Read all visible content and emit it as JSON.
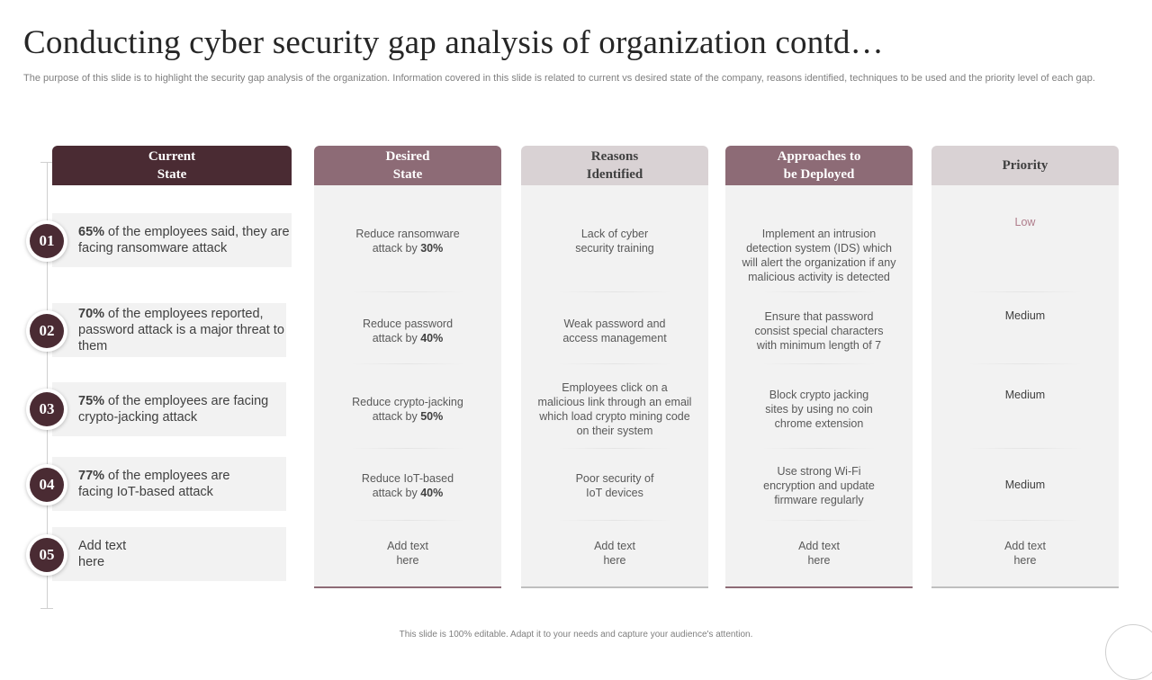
{
  "title": "Conducting cyber security gap analysis of organization contd…",
  "subtitle": "The purpose of this slide is to highlight the security gap analysis of the organization. Information covered in this slide is related to current vs  desired state of the company, reasons identified, techniques to be used and the priority level of each gap.",
  "headers": {
    "current": "Current\nState",
    "desired": "Desired\nState",
    "reasons": "Reasons\nIdentified",
    "approaches": "Approaches to\nbe Deployed",
    "priority": "Priority"
  },
  "rows": [
    {
      "num": "01",
      "current_bold": "65%",
      "current_text": " of the employees said, they are facing ransomware attack",
      "desired_text": "Reduce ransomware attack by ",
      "desired_bold": "30%",
      "reason": "Lack of cyber security training",
      "approach": "Implement  an intrusion detection system (IDS) which will alert the organization if any malicious  activity is detected",
      "priority": "Low"
    },
    {
      "num": "02",
      "current_bold": "70%",
      "current_text": " of the employees reported, password attack is a major threat to them",
      "desired_text": "Reduce password attack  by ",
      "desired_bold": "40%",
      "reason": "Weak password and access management",
      "approach": "Ensure that password consist special characters with minimum length of 7",
      "priority": "Medium"
    },
    {
      "num": "03",
      "current_bold": "75%",
      "current_text": " of the employees are facing crypto-jacking attack",
      "desired_text": "Reduce crypto-jacking attack by ",
      "desired_bold": "50%",
      "reason": "Employees click on a malicious link through an email which load crypto mining code on their system",
      "approach": "Block crypto jacking sites by using no coin chrome extension",
      "priority": "Medium"
    },
    {
      "num": "04",
      "current_bold": "77%",
      "current_text": " of the employees are facing IoT-based attack",
      "desired_text": "Reduce IoT-based attack by ",
      "desired_bold": "40%",
      "reason": "Poor security of IoT devices",
      "approach": "Use strong Wi-Fi encryption and update firmware regularly",
      "priority": "Medium"
    },
    {
      "num": "05",
      "current_bold": "",
      "current_text": "Add text here",
      "desired_text": "Add text here",
      "desired_bold": "",
      "reason": "Add text here",
      "approach": "Add text here",
      "priority": "Add text here"
    }
  ],
  "footer": "This slide is 100% editable.  Adapt it to your needs and capture your audience's attention."
}
